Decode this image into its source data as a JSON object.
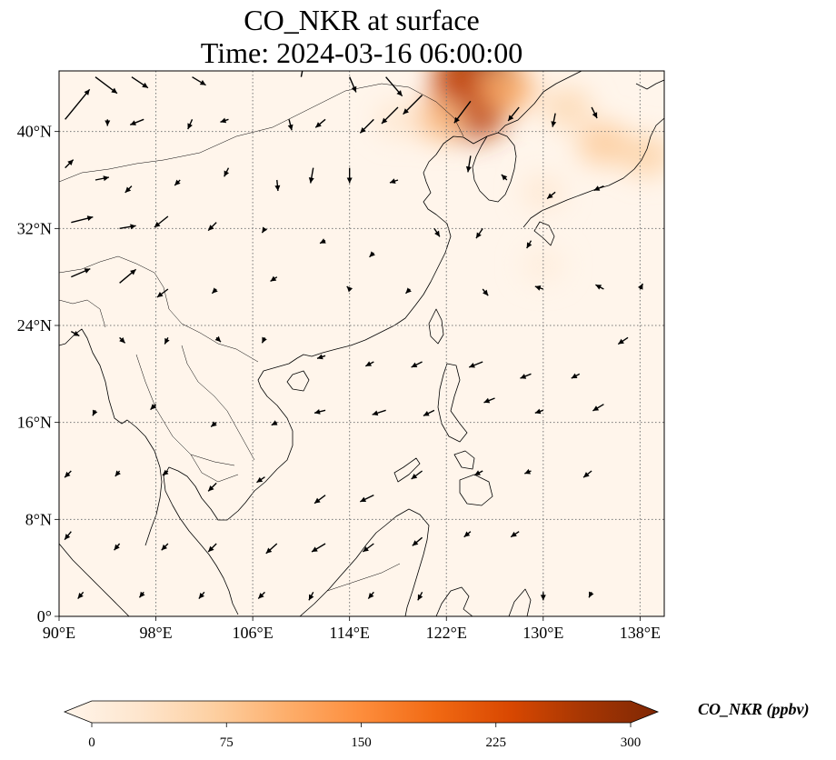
{
  "title": "CO_NKR at surface",
  "subtitle": "Time: 2024-03-16 06:00:00",
  "map": {
    "lon_range": [
      90,
      140
    ],
    "lat_range": [
      0,
      45
    ],
    "lon_ticks": [
      {
        "value": 90,
        "label": "90°E"
      },
      {
        "value": 98,
        "label": "98°E"
      },
      {
        "value": 106,
        "label": "106°E"
      },
      {
        "value": 114,
        "label": "114°E"
      },
      {
        "value": 122,
        "label": "122°E"
      },
      {
        "value": 130,
        "label": "130°E"
      },
      {
        "value": 138,
        "label": "138°E"
      }
    ],
    "lat_ticks": [
      {
        "value": 0,
        "label": "0°"
      },
      {
        "value": 8,
        "label": "8°N"
      },
      {
        "value": 16,
        "label": "16°N"
      },
      {
        "value": 24,
        "label": "24°N"
      },
      {
        "value": 32,
        "label": "32°N"
      },
      {
        "value": 40,
        "label": "40°N"
      }
    ],
    "gridlines": true,
    "background_color": "#fff5eb",
    "coastline_color": "#000000"
  },
  "colorbar": {
    "label": "CO_NKR (ppbv)",
    "range": [
      0,
      300
    ],
    "ticks": [
      {
        "value": 0,
        "label": "0"
      },
      {
        "value": 75,
        "label": "75"
      },
      {
        "value": 150,
        "label": "150"
      },
      {
        "value": 225,
        "label": "225"
      },
      {
        "value": 300,
        "label": "300"
      }
    ],
    "colormap": "OrRd",
    "stops": [
      "#fff5eb",
      "#fee6ce",
      "#fdd0a2",
      "#fdae6b",
      "#fd8d3c",
      "#f16913",
      "#d94801",
      "#a63603",
      "#7f2704"
    ],
    "extend": "both"
  },
  "plumes": [
    {
      "lon": 124.5,
      "lat": 44.5,
      "value": 290
    },
    {
      "lon": 123.5,
      "lat": 43.0,
      "value": 200
    },
    {
      "lon": 124.0,
      "lat": 42.0,
      "value": 250
    },
    {
      "lon": 121.5,
      "lat": 41.0,
      "value": 90
    },
    {
      "lon": 127.0,
      "lat": 43.5,
      "value": 110
    },
    {
      "lon": 132.0,
      "lat": 42.0,
      "value": 60
    },
    {
      "lon": 135.0,
      "lat": 39.0,
      "value": 80
    },
    {
      "lon": 138.5,
      "lat": 38.0,
      "value": 70
    },
    {
      "lon": 130.0,
      "lat": 35.0,
      "value": 30
    },
    {
      "lon": 118.0,
      "lat": 41.0,
      "value": 35
    },
    {
      "lon": 130.0,
      "lat": 29.0,
      "value": 20
    }
  ],
  "wind_vectors": [
    [
      93,
      44.5,
      40,
      -30
    ],
    [
      96,
      44.5,
      30,
      -20
    ],
    [
      101,
      44.5,
      25,
      -15
    ],
    [
      110,
      44.5,
      5,
      25
    ],
    [
      114,
      44.5,
      12,
      -28
    ],
    [
      117,
      44.5,
      30,
      -35
    ],
    [
      90.5,
      41,
      45,
      55
    ],
    [
      94,
      41,
      0,
      -12
    ],
    [
      97,
      41,
      -25,
      -10
    ],
    [
      101,
      41,
      -8,
      -18
    ],
    [
      104,
      41,
      -15,
      -5
    ],
    [
      109,
      41,
      5,
      -20
    ],
    [
      112,
      41,
      -18,
      -15
    ],
    [
      116,
      41,
      -25,
      -25
    ],
    [
      118,
      42,
      -30,
      -30
    ],
    [
      120,
      43,
      -35,
      -35
    ],
    [
      124,
      42.5,
      -30,
      -40
    ],
    [
      128,
      42,
      -20,
      -25
    ],
    [
      131,
      41.5,
      -5,
      -25
    ],
    [
      134,
      42,
      10,
      -20
    ],
    [
      90.5,
      37,
      15,
      15
    ],
    [
      93,
      36,
      25,
      5
    ],
    [
      96,
      35.5,
      -12,
      -12
    ],
    [
      100,
      36,
      -10,
      -10
    ],
    [
      104,
      37,
      -8,
      -16
    ],
    [
      108,
      36,
      2,
      -20
    ],
    [
      111,
      37,
      -5,
      -28
    ],
    [
      114,
      37,
      0,
      -28
    ],
    [
      118,
      36,
      -15,
      -5
    ],
    [
      124,
      38,
      -5,
      -30
    ],
    [
      127,
      36,
      -10,
      10
    ],
    [
      131,
      35,
      -15,
      -12
    ],
    [
      135,
      35.5,
      -18,
      -8
    ],
    [
      91,
      32.5,
      40,
      10
    ],
    [
      95,
      32,
      30,
      5
    ],
    [
      99,
      33,
      -25,
      -20
    ],
    [
      103,
      32.5,
      -15,
      -15
    ],
    [
      107,
      32,
      -5,
      -8
    ],
    [
      112,
      31,
      -10,
      -5
    ],
    [
      116,
      30,
      -8,
      -8
    ],
    [
      121,
      32,
      10,
      -15
    ],
    [
      125,
      32,
      -12,
      -18
    ],
    [
      129,
      31,
      -8,
      -14
    ],
    [
      91,
      28,
      35,
      15
    ],
    [
      95,
      27.5,
      30,
      25
    ],
    [
      99,
      27,
      -20,
      -15
    ],
    [
      103,
      27,
      -8,
      -8
    ],
    [
      108,
      28,
      -12,
      -8
    ],
    [
      114,
      27,
      -5,
      5
    ],
    [
      119,
      27,
      -8,
      -8
    ],
    [
      125,
      27,
      10,
      -12
    ],
    [
      130,
      27,
      -15,
      5
    ],
    [
      135,
      27,
      -15,
      8
    ],
    [
      138,
      27,
      5,
      10
    ],
    [
      91,
      23.5,
      15,
      -8
    ],
    [
      95,
      23,
      10,
      -10
    ],
    [
      99,
      23,
      -6,
      -12
    ],
    [
      103,
      23,
      8,
      -8
    ],
    [
      107,
      23,
      -5,
      -10
    ],
    [
      112,
      21.5,
      -15,
      -5
    ],
    [
      116,
      21,
      -15,
      -8
    ],
    [
      120,
      21,
      -20,
      -10
    ],
    [
      125,
      21,
      -25,
      -10
    ],
    [
      129,
      20,
      -20,
      -8
    ],
    [
      133,
      20,
      -15,
      -8
    ],
    [
      137,
      23,
      -18,
      -12
    ],
    [
      93,
      17,
      -5,
      -10
    ],
    [
      98,
      17.5,
      -10,
      -10
    ],
    [
      103,
      16,
      -10,
      -8
    ],
    [
      108,
      16,
      -10,
      -5
    ],
    [
      112,
      17,
      -20,
      -5
    ],
    [
      117,
      17,
      -25,
      -8
    ],
    [
      121,
      17,
      -20,
      -10
    ],
    [
      126,
      18,
      -20,
      -8
    ],
    [
      130,
      17,
      -15,
      -5
    ],
    [
      135,
      17.5,
      -20,
      -12
    ],
    [
      91,
      12,
      -12,
      -12
    ],
    [
      95,
      12,
      -8,
      -10
    ],
    [
      99,
      12,
      -10,
      -8
    ],
    [
      103,
      11,
      -15,
      -15
    ],
    [
      107,
      11.5,
      -15,
      -10
    ],
    [
      112,
      10,
      -20,
      -15
    ],
    [
      116,
      10,
      -25,
      -12
    ],
    [
      120,
      12,
      -20,
      -15
    ],
    [
      125,
      12,
      -15,
      -8
    ],
    [
      129,
      12,
      -12,
      -5
    ],
    [
      134,
      12,
      -15,
      -12
    ],
    [
      91,
      7,
      -12,
      -15
    ],
    [
      95,
      6,
      -10,
      -12
    ],
    [
      99,
      6,
      -12,
      -12
    ],
    [
      103,
      6,
      -15,
      -15
    ],
    [
      108,
      6,
      -20,
      -18
    ],
    [
      112,
      6,
      -25,
      -15
    ],
    [
      116,
      6,
      -20,
      -15
    ],
    [
      120,
      6.5,
      -18,
      -15
    ],
    [
      124,
      7,
      -12,
      -10
    ],
    [
      128,
      7,
      -15,
      -10
    ],
    [
      92,
      2,
      -10,
      -12
    ],
    [
      97,
      2,
      -8,
      -10
    ],
    [
      102,
      2,
      -10,
      -12
    ],
    [
      107,
      2,
      -12,
      -12
    ],
    [
      111,
      2,
      -8,
      -15
    ],
    [
      116,
      2,
      -10,
      -12
    ],
    [
      120,
      2,
      -8,
      -15
    ],
    [
      130,
      2,
      0,
      -15
    ],
    [
      134,
      2,
      -5,
      -10
    ]
  ]
}
